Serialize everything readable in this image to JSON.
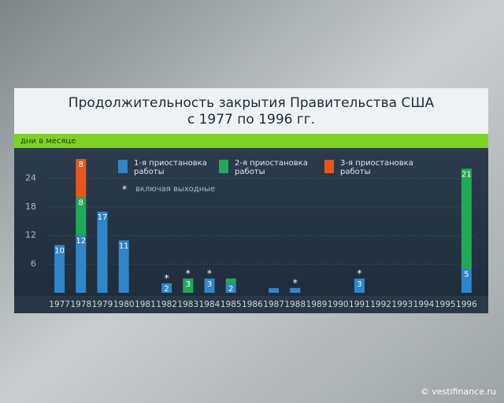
{
  "chart_data": {
    "type": "stacked_bar",
    "title": [
      "Продолжительность закрытия Правительства США",
      "с 1977 по 1996 гг."
    ],
    "y_label": "дни в месяце",
    "categories": [
      "1977",
      "1978",
      "1979",
      "1980",
      "1981",
      "1982",
      "1983",
      "1984",
      "1985",
      "1986",
      "1987",
      "1988",
      "1989",
      "1990",
      "1991",
      "1992",
      "1993",
      "1994",
      "1995",
      "1996"
    ],
    "series": [
      {
        "name": "1-я приостановка работы",
        "color": "#2f86c8",
        "values": [
          10,
          12,
          17,
          11,
          null,
          2,
          null,
          3,
          2,
          null,
          1,
          1,
          null,
          null,
          3,
          null,
          null,
          null,
          null,
          5
        ],
        "value_labels": [
          "10",
          "12",
          "17",
          "11",
          null,
          "2",
          null,
          "3",
          "2",
          null,
          null,
          null,
          null,
          null,
          "3",
          null,
          null,
          null,
          null,
          "5"
        ]
      },
      {
        "name": "2-я приостановка работы",
        "color": "#21a95a",
        "values": [
          null,
          8,
          null,
          null,
          null,
          null,
          3,
          null,
          1,
          null,
          null,
          null,
          null,
          null,
          null,
          null,
          null,
          null,
          null,
          21
        ],
        "value_labels": [
          null,
          "8",
          null,
          null,
          null,
          null,
          "3",
          null,
          null,
          null,
          null,
          null,
          null,
          null,
          null,
          null,
          null,
          null,
          null,
          "21"
        ]
      },
      {
        "name": "3-я приостановка работы",
        "color": "#e8561c",
        "values": [
          null,
          8,
          null,
          null,
          null,
          null,
          null,
          null,
          null,
          null,
          null,
          null,
          null,
          null,
          null,
          null,
          null,
          null,
          null,
          null
        ],
        "value_labels": [
          null,
          "8",
          null,
          null,
          null,
          null,
          null,
          null,
          null,
          null,
          null,
          null,
          null,
          null,
          null,
          null,
          null,
          null,
          null,
          null
        ]
      }
    ],
    "footnote": {
      "symbol": "*",
      "text": "включая выходные"
    },
    "weekend": [
      false,
      false,
      false,
      false,
      false,
      true,
      true,
      true,
      false,
      false,
      false,
      true,
      false,
      false,
      true,
      false,
      false,
      false,
      false,
      false
    ],
    "ylim": [
      0,
      30
    ],
    "yticks": [
      6,
      12,
      18,
      24
    ],
    "grid": true,
    "source": "© vestifinance.ru"
  }
}
